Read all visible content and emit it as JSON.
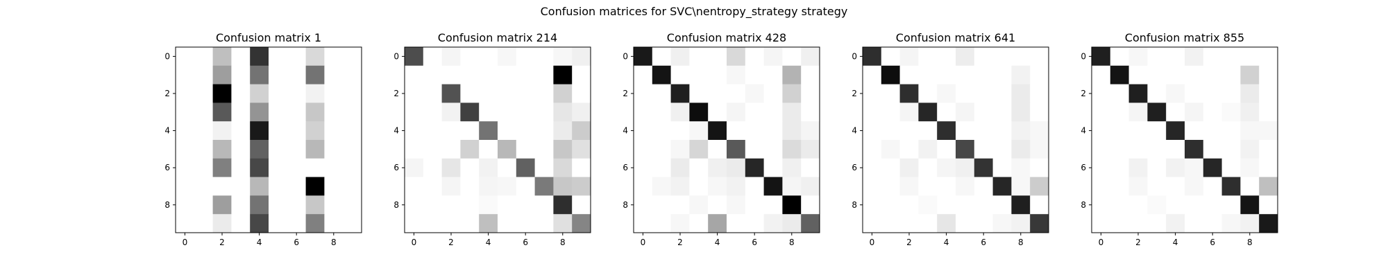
{
  "figure": {
    "title": "Confusion matrices for SVC\\nentropy_strategy strategy"
  },
  "chart_data": [
    {
      "type": "heatmap",
      "title": "Confusion matrix 1",
      "x_ticks": [
        0,
        2,
        4,
        6,
        8
      ],
      "y_ticks": [
        0,
        2,
        4,
        6,
        8
      ],
      "xlim": [
        -0.5,
        9.5
      ],
      "ylim": [
        9.5,
        -0.5
      ],
      "colormap": "Greys",
      "matrix": [
        [
          0,
          0,
          0.25,
          0,
          0.8,
          0,
          0,
          0.15,
          0,
          0
        ],
        [
          0,
          0,
          0.38,
          0,
          0.55,
          0,
          0,
          0.55,
          0,
          0
        ],
        [
          0,
          0,
          1.0,
          0,
          0.18,
          0,
          0,
          0.05,
          0,
          0
        ],
        [
          0,
          0,
          0.65,
          0,
          0.42,
          0,
          0,
          0.22,
          0,
          0
        ],
        [
          0,
          0,
          0.05,
          0,
          0.9,
          0,
          0,
          0.18,
          0,
          0
        ],
        [
          0,
          0,
          0.28,
          0,
          0.62,
          0,
          0,
          0.28,
          0,
          0
        ],
        [
          0,
          0,
          0.5,
          0,
          0.72,
          0,
          0,
          0.0,
          0,
          0
        ],
        [
          0,
          0,
          0.0,
          0,
          0.28,
          0,
          0,
          1.0,
          0,
          0
        ],
        [
          0,
          0,
          0.38,
          0,
          0.55,
          0,
          0,
          0.22,
          0,
          0
        ],
        [
          0,
          0,
          0.08,
          0,
          0.72,
          0,
          0,
          0.5,
          0,
          0
        ]
      ]
    },
    {
      "type": "heatmap",
      "title": "Confusion matrix 214",
      "x_ticks": [
        0,
        2,
        4,
        6,
        8
      ],
      "y_ticks": [
        0,
        2,
        4,
        6,
        8
      ],
      "xlim": [
        -0.5,
        9.5
      ],
      "ylim": [
        9.5,
        -0.5
      ],
      "colormap": "Greys",
      "matrix": [
        [
          0.7,
          0,
          0.04,
          0,
          0,
          0.03,
          0,
          0,
          0.03,
          0.06
        ],
        [
          0,
          0,
          0,
          0,
          0,
          0,
          0,
          0,
          1.0,
          0
        ],
        [
          0,
          0,
          0.68,
          0,
          0,
          0,
          0,
          0,
          0.18,
          0
        ],
        [
          0,
          0,
          0.05,
          0.75,
          0,
          0,
          0,
          0,
          0.1,
          0.06
        ],
        [
          0,
          0,
          0,
          0,
          0.55,
          0,
          0,
          0,
          0.08,
          0.2
        ],
        [
          0,
          0,
          0,
          0.18,
          0,
          0.28,
          0,
          0,
          0.22,
          0.12
        ],
        [
          0.04,
          0,
          0.1,
          0,
          0.05,
          0,
          0.62,
          0,
          0.15,
          0
        ],
        [
          0,
          0,
          0.04,
          0,
          0.04,
          0.03,
          0,
          0.52,
          0.22,
          0.2
        ],
        [
          0,
          0,
          0,
          0,
          0.02,
          0,
          0,
          0,
          0.82,
          0
        ],
        [
          0,
          0,
          0,
          0,
          0.25,
          0,
          0,
          0,
          0.12,
          0.48
        ]
      ]
    },
    {
      "type": "heatmap",
      "title": "Confusion matrix 428",
      "x_ticks": [
        0,
        2,
        4,
        6,
        8
      ],
      "y_ticks": [
        0,
        2,
        4,
        6,
        8
      ],
      "xlim": [
        -0.5,
        9.5
      ],
      "ylim": [
        9.5,
        -0.5
      ],
      "colormap": "Greys",
      "matrix": [
        [
          0.9,
          0,
          0.06,
          0,
          0,
          0.15,
          0,
          0.04,
          0,
          0.06
        ],
        [
          0,
          0.92,
          0,
          0,
          0,
          0.03,
          0,
          0,
          0.3,
          0
        ],
        [
          0,
          0,
          0.88,
          0,
          0,
          0,
          0.03,
          0,
          0.18,
          0
        ],
        [
          0,
          0,
          0.06,
          0.95,
          0,
          0.04,
          0,
          0,
          0.08,
          0
        ],
        [
          0,
          0,
          0,
          0.03,
          0.92,
          0,
          0,
          0,
          0.08,
          0.04
        ],
        [
          0,
          0,
          0.03,
          0.16,
          0,
          0.65,
          0,
          0,
          0.14,
          0.08
        ],
        [
          0,
          0,
          0.08,
          0,
          0.06,
          0.08,
          0.85,
          0,
          0.06,
          0
        ],
        [
          0,
          0.03,
          0.05,
          0,
          0.03,
          0.05,
          0,
          0.92,
          0.04,
          0.06
        ],
        [
          0,
          0,
          0,
          0.03,
          0,
          0.03,
          0,
          0,
          1.0,
          0
        ],
        [
          0,
          0,
          0.03,
          0,
          0.35,
          0,
          0,
          0.05,
          0.08,
          0.62
        ]
      ]
    },
    {
      "type": "heatmap",
      "title": "Confusion matrix 641",
      "x_ticks": [
        0,
        2,
        4,
        6,
        8
      ],
      "y_ticks": [
        0,
        2,
        4,
        6,
        8
      ],
      "xlim": [
        -0.5,
        9.5
      ],
      "ylim": [
        9.5,
        -0.5
      ],
      "colormap": "Greys",
      "matrix": [
        [
          0.82,
          0,
          0.04,
          0,
          0,
          0.07,
          0,
          0,
          0,
          0
        ],
        [
          0,
          0.95,
          0,
          0,
          0,
          0,
          0,
          0,
          0.05,
          0
        ],
        [
          0,
          0,
          0.82,
          0,
          0.03,
          0,
          0,
          0,
          0.08,
          0
        ],
        [
          0,
          0,
          0.04,
          0.85,
          0,
          0.04,
          0,
          0,
          0.08,
          0
        ],
        [
          0,
          0,
          0,
          0,
          0.82,
          0,
          0,
          0,
          0.05,
          0.03
        ],
        [
          0,
          0.03,
          0,
          0.05,
          0,
          0.72,
          0,
          0,
          0.08,
          0.03
        ],
        [
          0,
          0,
          0.06,
          0,
          0.04,
          0.06,
          0.8,
          0,
          0.03,
          0
        ],
        [
          0,
          0,
          0.03,
          0,
          0,
          0.03,
          0,
          0.85,
          0.03,
          0.2
        ],
        [
          0,
          0,
          0,
          0.02,
          0,
          0,
          0,
          0,
          0.88,
          0
        ],
        [
          0,
          0,
          0,
          0,
          0.1,
          0,
          0,
          0.03,
          0.05,
          0.78
        ]
      ]
    },
    {
      "type": "heatmap",
      "title": "Confusion matrix 855",
      "x_ticks": [
        0,
        2,
        4,
        6,
        8
      ],
      "y_ticks": [
        0,
        2,
        4,
        6,
        8
      ],
      "xlim": [
        -0.5,
        9.5
      ],
      "ylim": [
        9.5,
        -0.5
      ],
      "colormap": "Greys",
      "matrix": [
        [
          0.88,
          0,
          0.03,
          0,
          0,
          0.05,
          0,
          0,
          0,
          0
        ],
        [
          0,
          0.92,
          0,
          0,
          0,
          0,
          0,
          0,
          0.18,
          0
        ],
        [
          0,
          0,
          0.88,
          0,
          0.03,
          0,
          0,
          0,
          0.08,
          0
        ],
        [
          0,
          0,
          0.04,
          0.88,
          0,
          0.04,
          0,
          0.02,
          0.06,
          0
        ],
        [
          0,
          0,
          0,
          0,
          0.85,
          0,
          0,
          0,
          0.03,
          0.03
        ],
        [
          0,
          0,
          0,
          0,
          0,
          0.82,
          0,
          0,
          0.05,
          0
        ],
        [
          0,
          0,
          0.05,
          0,
          0.05,
          0.03,
          0.85,
          0,
          0.03,
          0
        ],
        [
          0,
          0,
          0.03,
          0,
          0,
          0.03,
          0,
          0.82,
          0,
          0.25
        ],
        [
          0,
          0,
          0,
          0.02,
          0,
          0,
          0,
          0,
          0.92,
          0
        ],
        [
          0,
          0,
          0,
          0,
          0.05,
          0,
          0,
          0.03,
          0.05,
          0.9
        ]
      ]
    }
  ]
}
